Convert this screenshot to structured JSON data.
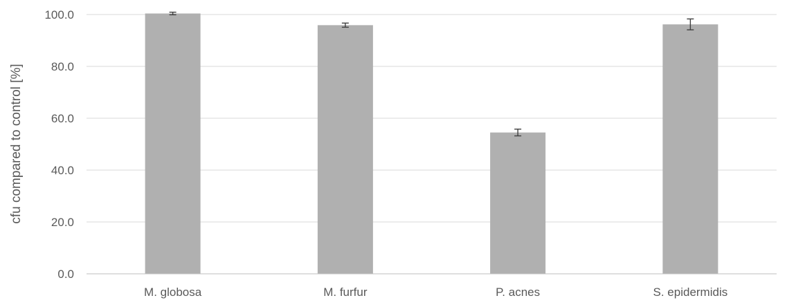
{
  "chart_data": {
    "type": "bar",
    "title": "",
    "xlabel": "",
    "ylabel": "cfu compared to control [%]",
    "categories": [
      "M. globosa",
      "M. furfur",
      "P. acnes",
      "S. epidermidis"
    ],
    "series": [
      {
        "values": [
          100.4,
          95.9,
          54.5,
          96.2
        ],
        "error": [
          0.5,
          0.8,
          1.3,
          2.1
        ],
        "color": "#b0b0b0"
      }
    ],
    "ylim": [
      0,
      100
    ],
    "yticks": [
      0,
      20,
      40,
      60,
      80,
      100
    ],
    "ytick_labels": [
      "0.0",
      "20.0",
      "40.0",
      "60.0",
      "80.0",
      "100.0"
    ],
    "grid": true,
    "legend": "none",
    "colors": {
      "bar": "#b0b0b0",
      "grid": "#d9d9d9",
      "axis": "#bfbfbf",
      "error_bar": "#404040",
      "text": "#595959"
    }
  }
}
